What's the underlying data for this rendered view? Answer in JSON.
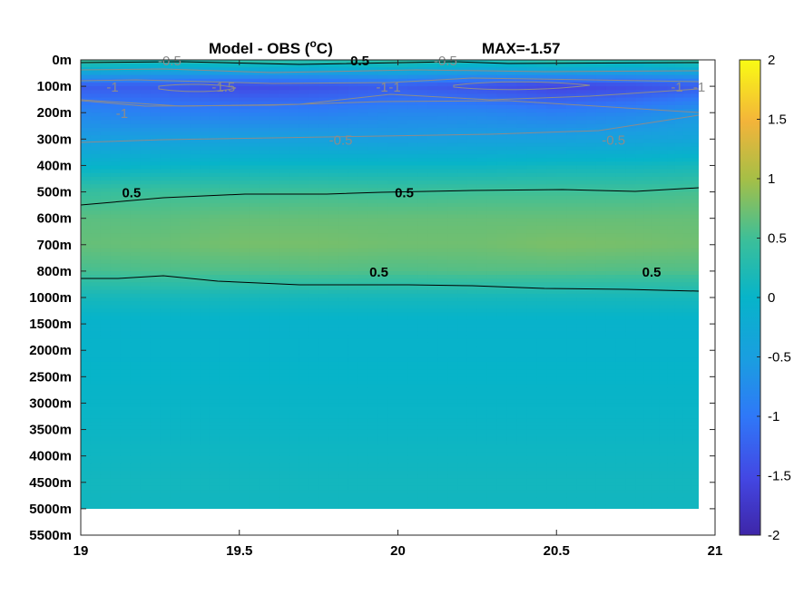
{
  "chart_data": {
    "type": "heatmap",
    "title": "Model - OBS (°C)",
    "title_main": "Model - OBS (",
    "title_deg": "o",
    "title_unit": "C)",
    "max_label": "MAX=-1.57",
    "x_ticks": [
      "19",
      "19.5",
      "20",
      "20.5",
      "21"
    ],
    "xlim": [
      19,
      21
    ],
    "y_ticks": [
      "0m",
      "100m",
      "200m",
      "300m",
      "400m",
      "500m",
      "600m",
      "700m",
      "800m",
      "1000m",
      "1500m",
      "2000m",
      "2500m",
      "3000m",
      "3500m",
      "4000m",
      "4500m",
      "5000m",
      "5500m"
    ],
    "colorbar": {
      "range": [
        -2,
        2
      ],
      "ticks": [
        "2",
        "1.5",
        "1",
        "0.5",
        "0",
        "-0.5",
        "-1",
        "-1.5",
        "-2"
      ],
      "colormap": "parula"
    },
    "x": [
      19.0,
      19.25,
      19.5,
      19.75,
      20.0,
      20.25,
      20.5,
      20.75,
      20.97
    ],
    "depth_levels": [
      "0m",
      "100m",
      "200m",
      "300m",
      "400m",
      "500m",
      "600m",
      "700m",
      "800m",
      "1000m",
      "1500m",
      "2000m",
      "2500m",
      "3000m",
      "3500m",
      "4000m",
      "4500m",
      "5000m"
    ],
    "values": [
      [
        0.6,
        0.3,
        0.5,
        0.4,
        0.5,
        0.3,
        0.5,
        0.4,
        0.5
      ],
      [
        -1.3,
        -1.3,
        -1.5,
        -1.4,
        -1.3,
        -1.4,
        -1.57,
        -1.45,
        -1.3
      ],
      [
        -0.8,
        -0.9,
        -0.9,
        -0.9,
        -0.8,
        -0.8,
        -0.9,
        -0.8,
        -0.6
      ],
      [
        -0.5,
        -0.45,
        -0.45,
        -0.45,
        -0.5,
        -0.45,
        -0.45,
        -0.4,
        -0.35
      ],
      [
        -0.05,
        0.0,
        0.05,
        0.05,
        0.05,
        0.05,
        0.1,
        0.1,
        0.15
      ],
      [
        0.45,
        0.5,
        0.5,
        0.52,
        0.5,
        0.52,
        0.52,
        0.52,
        0.55
      ],
      [
        0.65,
        0.65,
        0.7,
        0.7,
        0.7,
        0.7,
        0.7,
        0.7,
        0.7
      ],
      [
        0.7,
        0.72,
        0.78,
        0.78,
        0.75,
        0.75,
        0.8,
        0.78,
        0.75
      ],
      [
        0.55,
        0.58,
        0.6,
        0.62,
        0.6,
        0.62,
        0.62,
        0.6,
        0.6
      ],
      [
        0.15,
        0.15,
        0.15,
        0.15,
        0.15,
        0.15,
        0.15,
        0.15,
        0.15
      ],
      [
        -0.05,
        -0.05,
        -0.05,
        -0.05,
        -0.05,
        -0.05,
        -0.05,
        -0.05,
        -0.05
      ],
      [
        -0.02,
        -0.02,
        -0.02,
        -0.02,
        -0.02,
        -0.02,
        -0.02,
        -0.02,
        -0.02
      ],
      [
        0.0,
        0.0,
        0.0,
        0.0,
        0.0,
        0.0,
        0.0,
        0.0,
        0.0
      ],
      [
        0.02,
        0.02,
        0.02,
        0.02,
        0.02,
        0.02,
        0.02,
        0.02,
        0.02
      ],
      [
        0.05,
        0.05,
        0.05,
        0.05,
        0.05,
        0.05,
        0.05,
        0.05,
        0.05
      ],
      [
        0.08,
        0.08,
        0.08,
        0.08,
        0.08,
        0.08,
        0.08,
        0.08,
        0.08
      ],
      [
        0.12,
        0.12,
        0.12,
        0.12,
        0.12,
        0.12,
        0.12,
        0.12,
        0.12
      ],
      [
        0.1,
        0.1,
        0.1,
        0.1,
        0.1,
        0.1,
        0.1,
        0.1,
        0.1
      ]
    ],
    "contour_labels": [
      {
        "text": "0.5",
        "x": 19.88,
        "level": "0m",
        "color": "black"
      },
      {
        "text": "-0.5",
        "x": 19.28,
        "level": "0m",
        "color": "grey"
      },
      {
        "text": "-0.5",
        "x": 20.15,
        "level": "0m",
        "color": "grey"
      },
      {
        "text": "-1",
        "x": 19.1,
        "level": "100m",
        "color": "grey"
      },
      {
        "text": "-1.5",
        "x": 19.45,
        "level": "100m",
        "color": "grey"
      },
      {
        "text": "-1",
        "x": 19.95,
        "level": "100m",
        "color": "grey"
      },
      {
        "text": "-1",
        "x": 19.99,
        "level": "100m",
        "color": "grey"
      },
      {
        "text": "-1",
        "x": 20.88,
        "level": "100m",
        "color": "grey"
      },
      {
        "text": "-1",
        "x": 20.95,
        "level": "100m",
        "color": "grey"
      },
      {
        "text": "-1",
        "x": 19.13,
        "level": "200m",
        "color": "grey"
      },
      {
        "text": "-0.5",
        "x": 19.82,
        "level": "300m",
        "color": "grey"
      },
      {
        "text": "-0.5",
        "x": 20.68,
        "level": "300m",
        "color": "grey"
      },
      {
        "text": "0.5",
        "x": 19.16,
        "level": "500m",
        "color": "black"
      },
      {
        "text": "0.5",
        "x": 20.02,
        "level": "500m",
        "color": "black"
      },
      {
        "text": "0.5",
        "x": 19.94,
        "level": "800m",
        "color": "black"
      },
      {
        "text": "0.5",
        "x": 20.8,
        "level": "800m",
        "color": "black"
      }
    ]
  }
}
